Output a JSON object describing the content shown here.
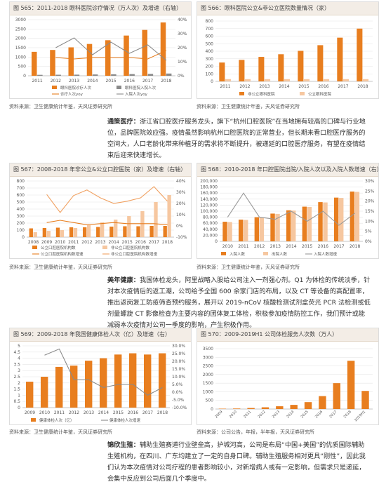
{
  "colors": {
    "orange": "#e87e1f",
    "light_orange": "#f6c7a0",
    "gray": "#8a8a8a",
    "line_orange": "#f0a060"
  },
  "sections": [
    {
      "charts": [
        {
          "title": "图 565：2011-2018 眼科医院诊疗情况（万人次）及增速（右轴）",
          "source": "资料来源：卫生健康统计年鉴，天风证券研究所",
          "chart_data": {
            "type": "bar",
            "x": [
              "2011",
              "2012",
              "2013",
              "2014",
              "2015",
              "2016",
              "2017",
              "2018"
            ],
            "ylim": [
              0,
              3000
            ],
            "yticks": [
              0,
              500,
              1000,
              1500,
              2000,
              2500,
              3000
            ],
            "y2lim": [
              0,
              40
            ],
            "y2ticks": [
              "0%",
              "10%",
              "20%",
              "30%",
              "40%"
            ],
            "series": [
              {
                "name": "眼科医院诊疗人次",
                "kind": "bar",
                "color": "#e87e1f",
                "values": [
                  1280,
                  1380,
                  1520,
                  1700,
                  1900,
                  2150,
                  2450,
                  2850
                ]
              },
              {
                "name": "眼科医院入院人次",
                "kind": "bar",
                "color": "#8a8a8a",
                "values": [
                  50,
                  55,
                  60,
                  70,
                  80,
                  90,
                  100,
                  120
                ]
              },
              {
                "name": "诊疗人次yoy",
                "kind": "line",
                "axis": "right",
                "color": "#e87e1f",
                "values": [
                  null,
                  13,
                  12,
                  13,
                  13,
                  13,
                  12,
                  18
                ]
              },
              {
                "name": "入院人次yoy",
                "kind": "line",
                "axis": "right",
                "color": "#8a8a8a",
                "values": [
                  null,
                  20,
                  27,
                  15,
                  24,
                  16,
                  22,
                  11
                ]
              }
            ]
          }
        },
        {
          "title": "图 566：眼科医院公立&非公立医院数量情况（家）",
          "source": "资料来源：卫生健康统计年鉴，天风证券研究所",
          "chart_data": {
            "type": "bar",
            "x": [
              "2011",
              "2012",
              "2013",
              "2014",
              "2015",
              "2016",
              "2017",
              "2018"
            ],
            "ylim": [
              0,
              800
            ],
            "yticks": [
              0,
              100,
              200,
              300,
              400,
              500,
              600,
              700,
              800
            ],
            "series": [
              {
                "name": "非公立眼科医院",
                "color": "#e87e1f",
                "values": [
                  250,
                  285,
                  325,
                  360,
                  405,
                  480,
                  580,
                  700
                ]
              },
              {
                "name": "公立眼科医院",
                "color": "#f6c7a0",
                "values": [
                  30,
                  30,
                  30,
                  30,
                  30,
                  30,
                  30,
                  30
                ]
              }
            ]
          }
        }
      ]
    },
    {
      "paragraph": {
        "lead": "通策医疗：",
        "text": "浙江省口腔医疗服务龙头，旗下“杭州口腔医院”在当地拥有较高的口碑与行业地位，品牌医院效应强。疫情虽然影响杭州口腔医院的正常营业，但长期来看口腔医疗服务的空间大，人口老龄化带来种植牙的需求将不断提升，被递延的口腔医疗服务，有望在疫情结束后迎来快速增长。"
      },
      "charts": [
        {
          "title": "图 567：2008-2018 年非公立&公立口腔医院（家）及增速（右轴）",
          "source": "资料来源：卫生健康统计年鉴，天风证券研究所",
          "chart_data": {
            "type": "bar",
            "x": [
              "2008",
              "2009",
              "2010",
              "2011",
              "2012",
              "2013",
              "2014",
              "2015",
              "2016",
              "2017",
              "2018"
            ],
            "ylim": [
              0,
              800
            ],
            "yticks": [
              0,
              100,
              200,
              300,
              400,
              500,
              600,
              700,
              800
            ],
            "y2lim": [
              -10,
              40
            ],
            "y2ticks": [
              "-10%",
              "0%",
              "10%",
              "20%",
              "30%",
              "40%"
            ],
            "series": [
              {
                "name": "公立口腔医院机构数",
                "kind": "bar",
                "color": "#e87e1f",
                "values": [
                  125,
                  130,
                  135,
                  140,
                  140,
                  145,
                  150,
                  155,
                  155,
                  160,
                  160
                ]
              },
              {
                "name": "非公立口腔医院机构数",
                "kind": "bar",
                "color": "#f6c7a0",
                "values": [
                  70,
                  90,
                  100,
                  130,
                  170,
                  210,
                  250,
                  300,
                  370,
                  500,
                  600
                ]
              },
              {
                "name": "公立口腔医院机构数增速",
                "kind": "line",
                "axis": "right",
                "color": "#e87e1f",
                "values": [
                  null,
                  3,
                  5,
                  3,
                  1,
                  2,
                  3,
                  2,
                  2,
                  2,
                  1
                ]
              },
              {
                "name": "非公立口腔医院机构数增速",
                "kind": "line",
                "axis": "right",
                "color": "#f0a060",
                "values": [
                  null,
                  28,
                  12,
                  27,
                  32,
                  25,
                  20,
                  22,
                  25,
                  35,
                  22
                ]
              }
            ]
          }
        },
        {
          "title": "图 568：2010-2018 年口腔医院出院/入院人次以及入院人数增速（右）",
          "source": "资料来源：卫生健康统计年鉴，天风证券研究所",
          "chart_data": {
            "type": "bar",
            "x": [
              "2010",
              "2011",
              "2012",
              "2013",
              "2014",
              "2015",
              "2016",
              "2017",
              "2018"
            ],
            "ylim": [
              0,
              200000
            ],
            "yticks": [
              "0",
              "20,000",
              "40,000",
              "60,000",
              "80,000",
              "100,000",
              "120,000",
              "140,000",
              "160,000",
              "180,000",
              "200,000"
            ],
            "y2lim": [
              0,
              30
            ],
            "y2ticks": [
              "0%",
              "5%",
              "10%",
              "15%",
              "20%",
              "25%",
              "30%"
            ],
            "series": [
              {
                "name": "入院人数",
                "kind": "bar",
                "color": "#e87e1f",
                "values": [
                  65000,
                  72000,
                  80000,
                  92000,
                  103000,
                  115000,
                  130000,
                  145000,
                  165000
                ]
              },
              {
                "name": "出院人数",
                "kind": "bar",
                "color": "#f6c7a0",
                "values": [
                  64000,
                  71000,
                  79000,
                  91000,
                  102000,
                  114000,
                  129000,
                  144000,
                  164000
                ]
              },
              {
                "name": "入院人数增速",
                "kind": "line",
                "axis": "right",
                "color": "#999999",
                "values": [
                  12,
                  24,
                  12,
                  11,
                  15,
                  10,
                  15,
                  8,
                  14
                ]
              }
            ]
          }
        }
      ]
    },
    {
      "paragraph": {
        "lead": "美年健康：",
        "text": "我国体检龙头，阿里战略入股给公司注入一剂强心剂。Q1 为体检的传统淡季，针对本次疫情后的返工潮，公司给予全国 600 余家门店的布局，以及 CT 等设备的高配置率，推出返岗复工防疫筛查预约服务，展开以 2019-nCoV 核酸检测试剂盒荧光 PCR 法检测或低剂量螺旋 CT 影像检查为主要内容的团体复工体检，积极参加疫情防控工作，我们预计或能减弱本次疫情对公司一季度的影响，产生积极作用。"
      },
      "charts": [
        {
          "title": "图 569：2009-2018 年我国健康体检人次（亿）及增速（右）",
          "source": "资料来源：卫生健康统计年鉴，天风证券研究所",
          "chart_data": {
            "type": "bar",
            "x": [
              "2009",
              "2010",
              "2011",
              "2012",
              "2013",
              "2014",
              "2015",
              "2016",
              "2017",
              "2018"
            ],
            "ylim": [
              0,
              5
            ],
            "yticks": [
              0,
              0.5,
              1,
              1.5,
              2,
              2.5,
              3,
              3.5,
              4,
              4.5,
              5
            ],
            "y2lim": [
              -10,
              30
            ],
            "y2ticks": [
              "-10.0%",
              "-5.0%",
              "0.0%",
              "5.0%",
              "10.0%",
              "15.0%",
              "20.0%",
              "25.0%",
              "30.0%"
            ],
            "series": [
              {
                "name": "健康体检人次（亿）",
                "kind": "bar",
                "color": "#e87e1f",
                "values": [
                  2.1,
                  2.5,
                  3.3,
                  3.4,
                  3.8,
                  4.0,
                  4.3,
                  4.4,
                  4.3,
                  4.4
                ]
              },
              {
                "name": "健康体检人次增速",
                "kind": "line",
                "axis": "right",
                "color": "#8a8a8a",
                "values": [
                  null,
                  24,
                  28,
                  8,
                  8,
                  3,
                  5,
                  5,
                  -2,
                  3
                ]
              }
            ]
          }
        },
        {
          "title": "图 570：2009-2019H1 公司体检服务人次数（万人）",
          "source": "资料来源：公司公告，年报，半年报，天风证券研究所",
          "chart_data": {
            "type": "bar",
            "x": [
              "2009",
              "2010",
              "2011",
              "2012",
              "2013",
              "2014",
              "2015",
              "2016",
              "2017",
              "2018",
              "2019H1"
            ],
            "ylim": [
              0,
              3500
            ],
            "yticks": [
              0,
              500,
              1000,
              1500,
              2000,
              2500,
              3000,
              3500
            ],
            "series": [
              {
                "name": "体检服务人次",
                "color": "#e87e1f",
                "values": [
                  20,
                  30,
                  60,
                  100,
                  160,
                  240,
                  400,
                  750,
                  1500,
                  2800,
                  1050
                ]
              }
            ]
          }
        }
      ]
    },
    {
      "paragraph": {
        "lead": "锦欣生殖：",
        "text": "辅助生殖赛道行业壁垒高，护城河高，公司是布局“中国+美国”的优质国际辅助生殖机构，在四川、广东均建立了一定的自身口碑。辅助生殖服务相对更具“刚性”，因此我们认为本次疫情对公司疗程的患者影响较小，对新增病人或有一定影响，但需求只是递延，会集中反应到公司后面几个季度中。"
      }
    }
  ]
}
